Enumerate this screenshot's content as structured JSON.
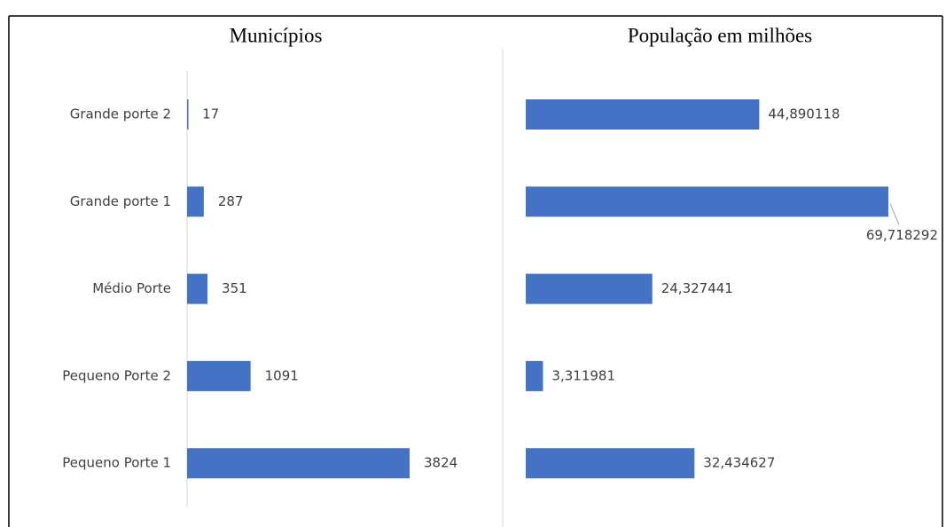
{
  "chart_data": [
    {
      "type": "hbar",
      "title": "Municípios",
      "categories": [
        "Grande porte 2",
        "Grande porte 1",
        "Médio Porte",
        "Pequeno Porte 2",
        "Pequeno Porte 1"
      ],
      "values": [
        17,
        287,
        351,
        1091,
        3824
      ],
      "color": "#4472c4",
      "xlim": [
        0,
        5000
      ]
    },
    {
      "type": "hbar",
      "title": "População em milhões",
      "values": [
        44.890118,
        69.718292,
        24.327441,
        3.311981,
        32.434627
      ],
      "value_labels": [
        "44,890118",
        "69,718292",
        "24,327441",
        "3,311981",
        "32,434627"
      ],
      "color": "#4472c4",
      "xlim": [
        0,
        80
      ]
    }
  ]
}
